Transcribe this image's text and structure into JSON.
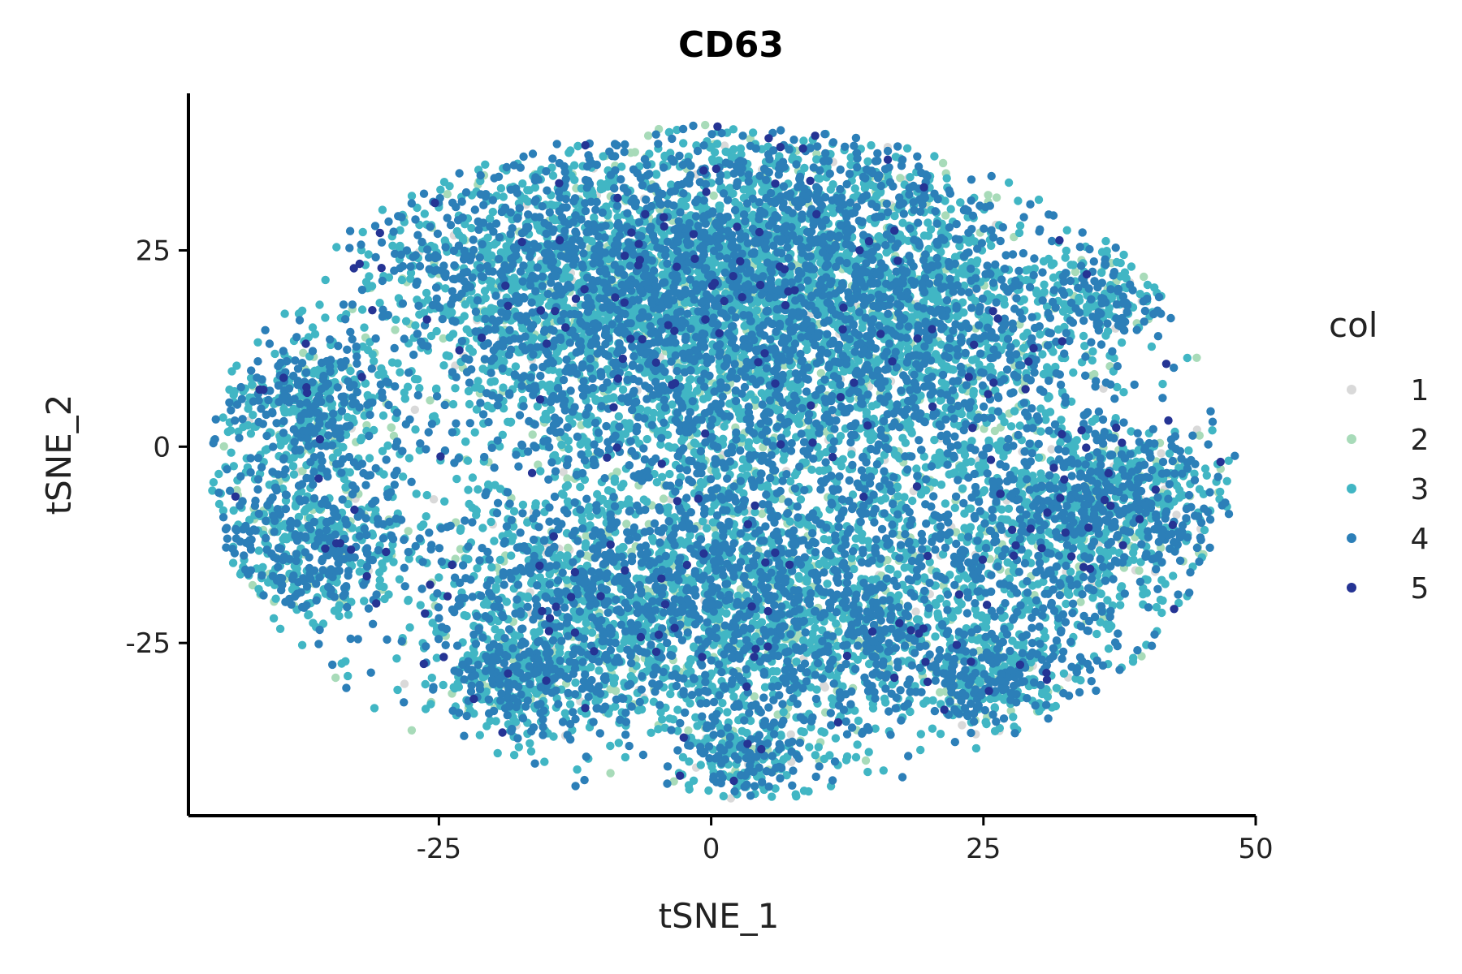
{
  "chart_data": {
    "type": "scatter",
    "title": "CD63",
    "xlabel": "tSNE_1",
    "ylabel": "tSNE_2",
    "xlim": [
      -48,
      50
    ],
    "ylim": [
      -47,
      45
    ],
    "x_ticks": [
      {
        "value": -25,
        "label": "-25"
      },
      {
        "value": 0,
        "label": "0"
      },
      {
        "value": 25,
        "label": "25"
      },
      {
        "value": 50,
        "label": "50"
      }
    ],
    "y_ticks": [
      {
        "value": -25,
        "label": "-25"
      },
      {
        "value": 0,
        "label": "0"
      },
      {
        "value": 25,
        "label": "25"
      }
    ],
    "grid": false,
    "legend": {
      "title": "col",
      "position": "right",
      "entries": [
        {
          "label": "1",
          "color": "#d9d9d9"
        },
        {
          "label": "2",
          "color": "#a8dbb9"
        },
        {
          "label": "3",
          "color": "#41b6c4"
        },
        {
          "label": "4",
          "color": "#2c7fb8"
        },
        {
          "label": "5",
          "color": "#253494"
        }
      ]
    },
    "series": [
      {
        "name": "1",
        "color": "#d9d9d9",
        "weight": 0.02
      },
      {
        "name": "2",
        "color": "#a8dbb9",
        "weight": 0.08
      },
      {
        "name": "3",
        "color": "#41b6c4",
        "weight": 0.47
      },
      {
        "name": "4",
        "color": "#2c7fb8",
        "weight": 0.41
      },
      {
        "name": "5",
        "color": "#253494",
        "weight": 0.02
      }
    ],
    "clusters": [
      {
        "cx": 0,
        "cy": 8,
        "sx": 13,
        "sy": 16,
        "n": 3600
      },
      {
        "cx": -12,
        "cy": 22,
        "sx": 10,
        "sy": 8,
        "n": 1600
      },
      {
        "cx": 10,
        "cy": 25,
        "sx": 8,
        "sy": 9,
        "n": 1300
      },
      {
        "cx": 22,
        "cy": 12,
        "sx": 8,
        "sy": 8,
        "n": 900
      },
      {
        "cx": -37,
        "cy": 5,
        "sx": 4,
        "sy": 5,
        "n": 500
      },
      {
        "cx": -37,
        "cy": -12,
        "sx": 5,
        "sy": 5,
        "n": 600
      },
      {
        "cx": -8,
        "cy": -22,
        "sx": 10,
        "sy": 8,
        "n": 1500
      },
      {
        "cx": 12,
        "cy": -22,
        "sx": 9,
        "sy": 8,
        "n": 1200
      },
      {
        "cx": 32,
        "cy": -12,
        "sx": 7,
        "sy": 7,
        "n": 800
      },
      {
        "cx": 38,
        "cy": -6,
        "sx": 5,
        "sy": 4,
        "n": 400
      },
      {
        "cx": 36,
        "cy": 19,
        "sx": 3,
        "sy": 3,
        "n": 180
      },
      {
        "cx": 3,
        "cy": -39,
        "sx": 3,
        "sy": 3,
        "n": 220
      },
      {
        "cx": -18,
        "cy": -30,
        "sx": 3,
        "sy": 3,
        "n": 250
      },
      {
        "cx": 26,
        "cy": -30,
        "sx": 4,
        "sy": 3,
        "n": 300
      }
    ]
  }
}
